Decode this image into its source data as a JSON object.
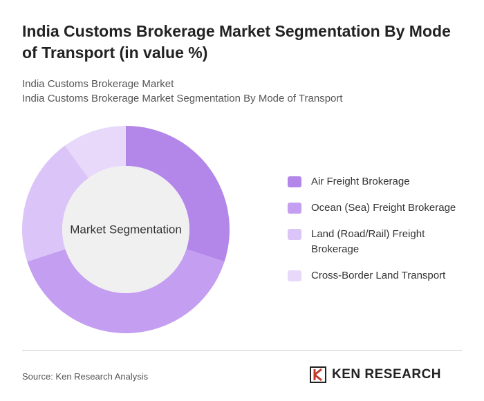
{
  "chart_data": {
    "type": "donut",
    "title": "India Customs Brokerage Market Segmentation By Mode of Transport (in value %)",
    "subtitle": [
      "India Customs Brokerage Market",
      "India Customs Brokerage Market Segmentation By Mode of Transport"
    ],
    "center_label": "Market Segmentation",
    "categories": [
      "Air Freight Brokerage",
      "Ocean (Sea) Freight Brokerage",
      "Land (Road/Rail) Freight Brokerage",
      "Cross-Border Land Transport"
    ],
    "values": [
      30,
      40,
      20,
      10
    ],
    "colors": [
      "#b386ea",
      "#c49ef0",
      "#dbc4f7",
      "#e8d9fa"
    ]
  },
  "source": "Source: Ken Research Analysis",
  "brand": "KEN RESEARCH"
}
